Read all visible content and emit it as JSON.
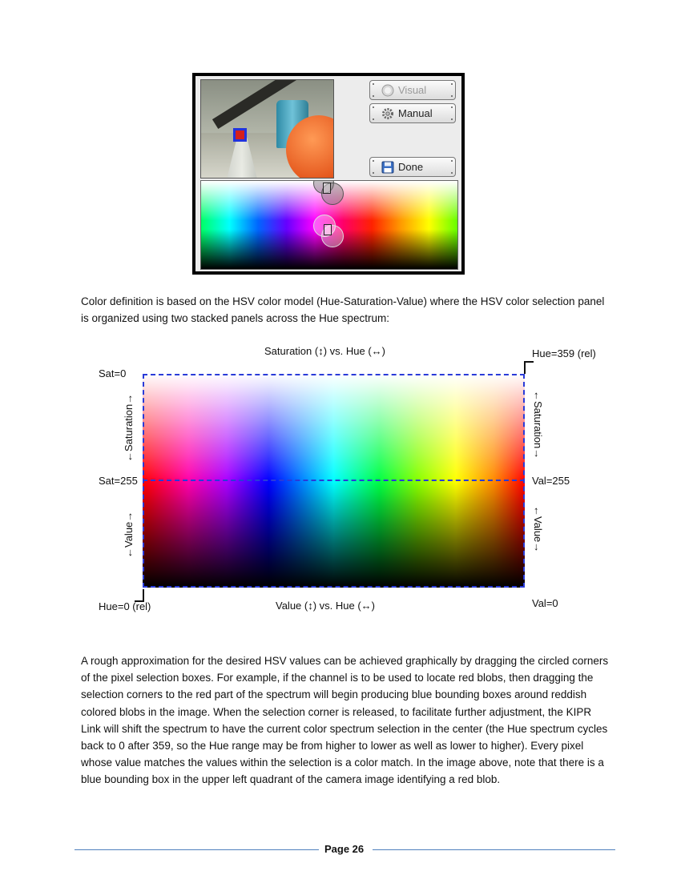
{
  "screenshot": {
    "buttons": {
      "visual": "Visual",
      "manual": "Manual",
      "done": "Done"
    },
    "icons": {
      "visual": "radio-disc-icon",
      "manual": "gear-icon",
      "done": "floppy-disk-icon"
    }
  },
  "paragraph1": "Color definition is based on the HSV color model (Hue-Saturation-Value) where the HSV color selection panel is organized using two stacked panels across the Hue spectrum:",
  "diagram": {
    "title_top": "Saturation (↕) vs. Hue (↔)",
    "title_bottom": "Value (↕) vs. Hue (↔)",
    "sat0": "Sat=0",
    "sat255": "Sat=255",
    "hue359": "Hue=359 (rel)",
    "hue0": "Hue=0 (rel)",
    "val255": "Val=255",
    "val0": "Val=0",
    "saturation_left": "←Saturation→",
    "value_left": "←Value→",
    "saturation_right": "←Saturation→",
    "value_right": "←Value→",
    "outline_color": "#2a3bd8"
  },
  "paragraph2": "A rough approximation for the desired HSV values can be achieved graphically by dragging the circled corners of the pixel selection boxes.  For example, if the channel is to be used to locate red blobs, then dragging the selection corners to the red part of the spectrum will begin producing blue bounding boxes around reddish colored blobs in the image.  When the selection corner is released, to facilitate further adjustment, the KIPR Link will shift the spectrum to have the current color spectrum selection in the center (the Hue spectrum cycles back to 0 after 359, so the Hue range may be from higher to lower as well as lower to higher).  Every pixel whose value matches the values within the selection is a color match.  In the image above, note that there is a blue bounding box in the upper left quadrant of the camera image identifying a red blob.",
  "footer": {
    "page": "Page 26",
    "rule_color": "#4f81bd"
  }
}
